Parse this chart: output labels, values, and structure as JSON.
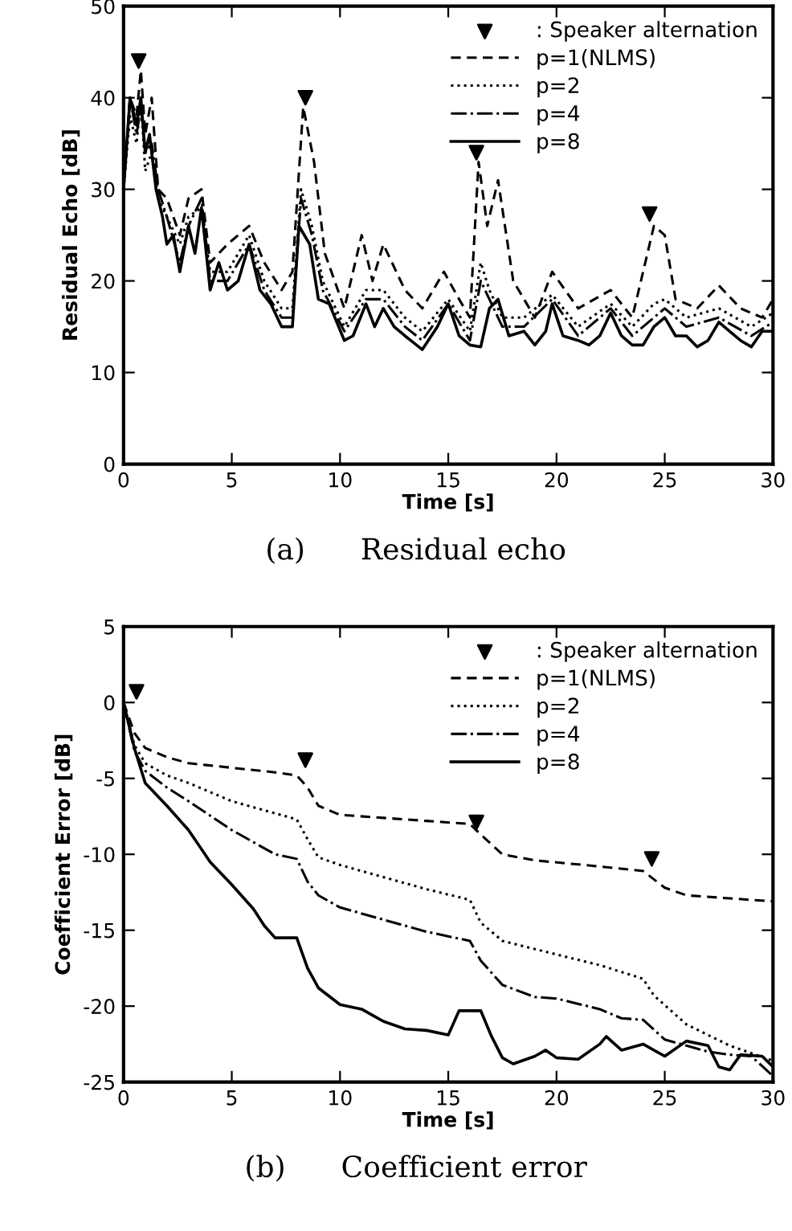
{
  "chart_data": [
    {
      "type": "line",
      "xlabel": "Time [s]",
      "ylabel": "Residual Echo [dB]",
      "xlim": [
        0,
        30
      ],
      "ylim": [
        0,
        50
      ],
      "xticks": [
        0,
        5,
        10,
        15,
        20,
        25,
        30
      ],
      "yticks": [
        0,
        10,
        20,
        30,
        40,
        50
      ],
      "grid": false,
      "legend": "top right",
      "annotations": [
        "(a)      Residual echo"
      ],
      "series": [
        {
          "name": ": Speaker alternation",
          "type": "scatter",
          "marker": "triangle",
          "color": "#000000",
          "x": [
            0.7,
            8.4,
            16.3,
            24.3
          ],
          "values": [
            44,
            40,
            34,
            27.3
          ]
        },
        {
          "name": "p=1(NLMS)",
          "color": "#000000",
          "line_style": "dashed",
          "x": [
            0,
            0.3,
            0.6,
            0.8,
            1.0,
            1.3,
            1.6,
            2.0,
            2.6,
            3.0,
            3.6,
            4.0,
            4.8,
            5.8,
            6.5,
            7.3,
            7.8,
            8.3,
            8.8,
            9.3,
            10.2,
            11,
            11.5,
            12,
            13,
            13.8,
            14.8,
            15.5,
            16,
            16.4,
            16.8,
            17.3,
            18,
            19,
            19.8,
            21,
            22.5,
            23.5,
            24.5,
            25,
            25.5,
            26.5,
            27.5,
            28.5,
            29.5,
            30
          ],
          "values": [
            30,
            40,
            38,
            43,
            36,
            40,
            30,
            29,
            25,
            29,
            30,
            22,
            24,
            26,
            22,
            19,
            21,
            39,
            33,
            23,
            17,
            25,
            20,
            24,
            19,
            17,
            21,
            18,
            16,
            33,
            26,
            31,
            20,
            16,
            21,
            17,
            19,
            16,
            26,
            25,
            18,
            17,
            19.5,
            17,
            16,
            18
          ]
        },
        {
          "name": "p=2",
          "color": "#000000",
          "line_style": "dotted",
          "x": [
            0,
            0.3,
            0.6,
            0.8,
            1.0,
            1.3,
            1.6,
            2.0,
            2.6,
            3.0,
            3.6,
            4.0,
            4.8,
            5.8,
            6.5,
            7.3,
            7.8,
            8.2,
            8.7,
            9.2,
            10.2,
            11.2,
            12,
            13,
            13.8,
            15,
            16,
            16.5,
            16.9,
            17.5,
            18.5,
            19.8,
            21,
            22.5,
            23.5,
            24.5,
            25,
            26,
            27.5,
            29,
            30
          ],
          "values": [
            30,
            38,
            35,
            40,
            32,
            34,
            29,
            27,
            24,
            27,
            28,
            21,
            21,
            25,
            20,
            17,
            17,
            30,
            26,
            20,
            15,
            19,
            19,
            16,
            14.5,
            18,
            14.5,
            22,
            19,
            16,
            16,
            18.5,
            15,
            17.5,
            15,
            17.5,
            18,
            16,
            17,
            15,
            16.5
          ]
        },
        {
          "name": "p=4",
          "color": "#000000",
          "line_style": "dashdot",
          "x": [
            0,
            0.3,
            0.6,
            0.8,
            1.0,
            1.3,
            1.6,
            2.0,
            2.6,
            3.0,
            3.6,
            4.0,
            4.8,
            5.8,
            6.5,
            7.3,
            7.8,
            8.2,
            8.7,
            9.2,
            10.2,
            11.2,
            12,
            13,
            13.8,
            15,
            16,
            16.5,
            16.9,
            17.5,
            18.5,
            19.8,
            21,
            22.5,
            23.5,
            24.5,
            25,
            26,
            27.5,
            29,
            30
          ],
          "values": [
            30,
            40,
            36,
            39,
            34,
            35,
            30,
            27,
            22,
            26,
            29,
            20,
            20,
            24,
            19,
            16,
            16,
            29,
            25,
            19,
            14.5,
            18,
            18,
            15,
            13.5,
            17.5,
            13.5,
            20,
            18,
            15,
            15,
            18,
            14,
            17,
            14,
            16,
            17,
            15,
            16,
            14,
            15.5
          ]
        },
        {
          "name": "p=8",
          "color": "#000000",
          "line_style": "solid",
          "x": [
            0,
            0.3,
            0.6,
            0.8,
            1.0,
            1.2,
            1.5,
            1.8,
            2.0,
            2.3,
            2.6,
            3.0,
            3.3,
            3.6,
            4.0,
            4.4,
            4.8,
            5.3,
            5.8,
            6.3,
            6.8,
            7.3,
            7.8,
            8.1,
            8.6,
            9.0,
            9.5,
            10.2,
            10.6,
            11.2,
            11.6,
            12,
            12.5,
            13,
            13.8,
            14.5,
            15,
            15.5,
            16,
            16.5,
            16.9,
            17.3,
            17.8,
            18.5,
            19,
            19.5,
            19.8,
            20.3,
            21,
            21.5,
            22,
            22.5,
            23,
            23.5,
            24,
            24.5,
            25,
            25.5,
            26,
            26.5,
            27,
            27.5,
            28,
            28.5,
            29,
            29.5,
            30
          ],
          "values": [
            30,
            40,
            37,
            40,
            34,
            36,
            30,
            27,
            24,
            25,
            21,
            26,
            23,
            28,
            19,
            22,
            19,
            20,
            24,
            19,
            17.5,
            15,
            15,
            26,
            24,
            18,
            17.5,
            13.5,
            14,
            17.5,
            15,
            17,
            15,
            14,
            12.5,
            15,
            17.5,
            14,
            13,
            12.8,
            17,
            18,
            14,
            14.5,
            13,
            14.5,
            17.5,
            14,
            13.5,
            13,
            14,
            16.5,
            14,
            13,
            13,
            15,
            16,
            14,
            14,
            12.8,
            13.5,
            15.5,
            14.5,
            13.5,
            12.8,
            14.5,
            14.5
          ]
        }
      ]
    },
    {
      "type": "line",
      "xlabel": "Time [s]",
      "ylabel": "Coefficient Error [dB]",
      "xlim": [
        0,
        30
      ],
      "ylim": [
        -25,
        5
      ],
      "xticks": [
        0,
        5,
        10,
        15,
        20,
        25,
        30
      ],
      "yticks": [
        -25,
        -20,
        -15,
        -10,
        -5,
        0,
        5
      ],
      "grid": false,
      "legend": "top right",
      "annotations": [
        "(b)      Coefficient error"
      ],
      "series": [
        {
          "name": ": Speaker alternation",
          "type": "scatter",
          "marker": "triangle",
          "color": "#000000",
          "x": [
            0.6,
            8.4,
            16.3,
            24.4
          ],
          "values": [
            0.7,
            -3.8,
            -7.9,
            -10.3
          ]
        },
        {
          "name": "p=1(NLMS)",
          "color": "#000000",
          "line_style": "dashed",
          "x": [
            0,
            0.5,
            1,
            2,
            3,
            5,
            7,
            8,
            8.5,
            9,
            10,
            12,
            14,
            16,
            16.5,
            17.5,
            19,
            22,
            24,
            25,
            26,
            28,
            30
          ],
          "values": [
            0,
            -2,
            -3,
            -3.6,
            -4,
            -4.3,
            -4.6,
            -4.8,
            -5.6,
            -6.8,
            -7.4,
            -7.6,
            -7.8,
            -8,
            -8.7,
            -10,
            -10.4,
            -10.8,
            -11.1,
            -12.2,
            -12.7,
            -12.9,
            -13.1
          ]
        },
        {
          "name": "p=2",
          "color": "#000000",
          "line_style": "dotted",
          "x": [
            0,
            0.5,
            1,
            2,
            3,
            5,
            7,
            8,
            8.5,
            9,
            10,
            12,
            14,
            16,
            16.5,
            17.5,
            20,
            22,
            24,
            24.5,
            26,
            28,
            30
          ],
          "values": [
            0,
            -2.8,
            -4,
            -4.8,
            -5.3,
            -6.5,
            -7.3,
            -7.7,
            -9,
            -10.2,
            -10.7,
            -11.5,
            -12.3,
            -13,
            -14.5,
            -15.7,
            -16.6,
            -17.3,
            -18.2,
            -19.3,
            -21.2,
            -22.6,
            -23.6
          ]
        },
        {
          "name": "p=4",
          "color": "#000000",
          "line_style": "dashdot",
          "x": [
            0,
            0.5,
            1,
            2,
            3,
            5,
            7,
            8,
            8.5,
            9,
            10,
            12,
            14,
            16,
            16.5,
            17.5,
            19,
            20,
            22,
            23,
            24,
            25,
            26,
            27,
            28,
            29,
            30
          ],
          "values": [
            0,
            -3.2,
            -4.5,
            -5.6,
            -6.5,
            -8.4,
            -10,
            -10.3,
            -11.8,
            -12.7,
            -13.5,
            -14.3,
            -15.1,
            -15.7,
            -17,
            -18.6,
            -19.4,
            -19.5,
            -20.2,
            -20.8,
            -20.9,
            -22.2,
            -22.6,
            -23,
            -23.2,
            -23.3,
            -24.6
          ]
        },
        {
          "name": "p=8",
          "color": "#000000",
          "line_style": "solid",
          "x": [
            0,
            0.5,
            1,
            2,
            3,
            4,
            5,
            6,
            6.5,
            7,
            8,
            8.5,
            9,
            10,
            11,
            12,
            13,
            14,
            15,
            15.5,
            16.5,
            17,
            17.5,
            18,
            19,
            19.5,
            20,
            21,
            22,
            22.3,
            23,
            24,
            25,
            26,
            27,
            27.5,
            28,
            28.5,
            29.5,
            30
          ],
          "values": [
            0,
            -3,
            -5.3,
            -6.8,
            -8.4,
            -10.5,
            -12,
            -13.6,
            -14.7,
            -15.5,
            -15.5,
            -17.5,
            -18.8,
            -19.9,
            -20.2,
            -21,
            -21.5,
            -21.6,
            -21.9,
            -20.3,
            -20.3,
            -22,
            -23.4,
            -23.8,
            -23.3,
            -22.9,
            -23.4,
            -23.5,
            -22.5,
            -22,
            -22.9,
            -22.5,
            -23.3,
            -22.3,
            -22.6,
            -24,
            -24.2,
            -23.2,
            -23.3,
            -24
          ]
        }
      ]
    }
  ]
}
